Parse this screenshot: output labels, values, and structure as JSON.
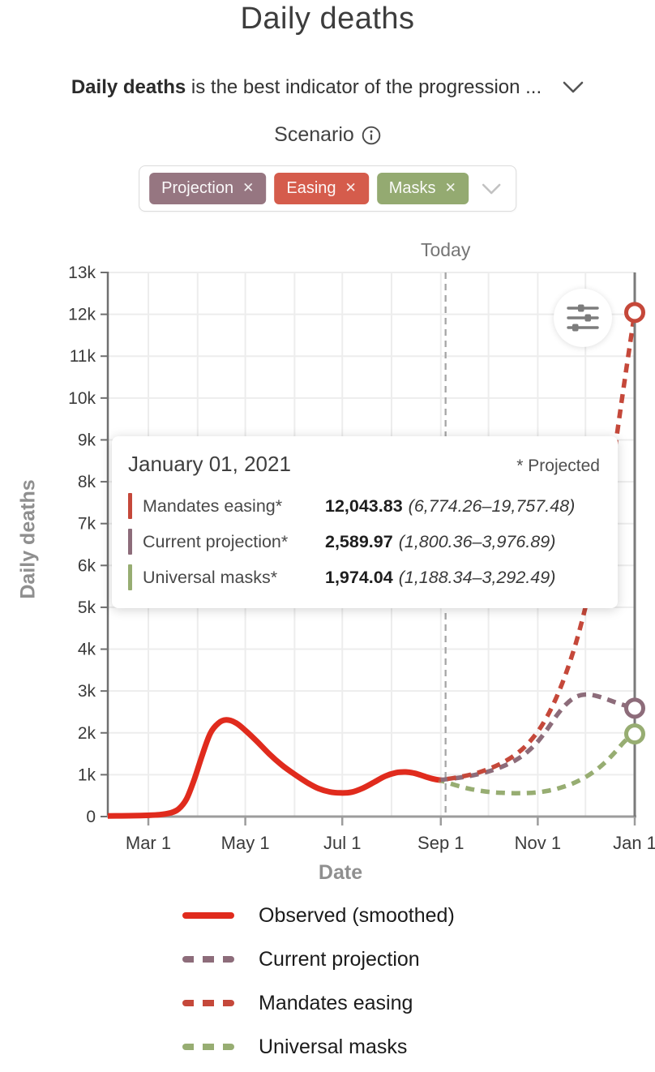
{
  "header": {
    "title": "Daily deaths",
    "subtitle_bold": "Daily deaths",
    "subtitle_rest": " is the best indicator of the progression ..."
  },
  "scenario": {
    "label": "Scenario",
    "close_glyph": "✕",
    "chips": [
      {
        "label": "Projection",
        "color": "#967681"
      },
      {
        "label": "Easing",
        "color": "#d55c4c"
      },
      {
        "label": "Masks",
        "color": "#94aa71"
      }
    ]
  },
  "tooltip": {
    "date": "January 01, 2021",
    "projected_note": "* Projected",
    "rows": [
      {
        "label": "Mandates easing*",
        "value": "12,043.83",
        "range": "(6,774.26–19,757.48)",
        "color": "#c5483a"
      },
      {
        "label": "Current projection*",
        "value": "2,589.97",
        "range": "(1,800.36–3,976.89)",
        "color": "#8d6c7a"
      },
      {
        "label": "Universal masks*",
        "value": "1,974.04",
        "range": "(1,188.34–3,292.49)",
        "color": "#97ad72"
      }
    ]
  },
  "chart_data": {
    "type": "line",
    "title": "Daily deaths",
    "xlabel": "Date",
    "ylabel": "Daily deaths",
    "ylim": [
      0,
      13000
    ],
    "x_domain": [
      3.5,
      335
    ],
    "x_ticks": [
      {
        "day": 29,
        "label": "Mar 1"
      },
      {
        "day": 90,
        "label": "May 1"
      },
      {
        "day": 151,
        "label": "Jul 1"
      },
      {
        "day": 213,
        "label": "Sep 1"
      },
      {
        "day": 274,
        "label": "Nov 1"
      },
      {
        "day": 335,
        "label": "Jan 1"
      }
    ],
    "month_grid_days": [
      29,
      60,
      90,
      121,
      151,
      182,
      213,
      243,
      274,
      304
    ],
    "y_tick_labels": [
      "0",
      "1k",
      "2k",
      "3k",
      "4k",
      "5k",
      "6k",
      "7k",
      "8k",
      "9k",
      "10k",
      "11k",
      "12k",
      "13k"
    ],
    "grid": true,
    "today": {
      "day": 216,
      "label": "Today"
    },
    "series": [
      {
        "name": "Observed (smoothed)",
        "style": "solid",
        "color": "#e02b1d",
        "end_marker": false,
        "points": [
          [
            3.5,
            15
          ],
          [
            12,
            18
          ],
          [
            20,
            22
          ],
          [
            28,
            30
          ],
          [
            36,
            45
          ],
          [
            43,
            90
          ],
          [
            48,
            180
          ],
          [
            53,
            420
          ],
          [
            58,
            900
          ],
          [
            63,
            1480
          ],
          [
            68,
            1990
          ],
          [
            73,
            2230
          ],
          [
            78,
            2310
          ],
          [
            84,
            2240
          ],
          [
            90,
            2060
          ],
          [
            97,
            1810
          ],
          [
            105,
            1500
          ],
          [
            113,
            1230
          ],
          [
            121,
            1010
          ],
          [
            129,
            810
          ],
          [
            136,
            670
          ],
          [
            143,
            590
          ],
          [
            150,
            565
          ],
          [
            157,
            585
          ],
          [
            164,
            680
          ],
          [
            171,
            820
          ],
          [
            178,
            965
          ],
          [
            185,
            1050
          ],
          [
            191,
            1065
          ],
          [
            197,
            1030
          ],
          [
            204,
            945
          ],
          [
            210,
            885
          ],
          [
            215,
            862
          ]
        ]
      },
      {
        "name": "Universal masks",
        "style": "dashed",
        "color": "#97ad72",
        "dash_offset": 4,
        "end_marker": true,
        "points": [
          [
            212,
            875
          ],
          [
            218,
            800
          ],
          [
            225,
            720
          ],
          [
            232,
            655
          ],
          [
            239,
            610
          ],
          [
            246,
            580
          ],
          [
            253,
            565
          ],
          [
            260,
            558
          ],
          [
            267,
            562
          ],
          [
            274,
            580
          ],
          [
            281,
            620
          ],
          [
            288,
            685
          ],
          [
            295,
            775
          ],
          [
            302,
            900
          ],
          [
            309,
            1065
          ],
          [
            316,
            1280
          ],
          [
            323,
            1555
          ],
          [
            329,
            1810
          ],
          [
            335,
            1974.04
          ]
        ]
      },
      {
        "name": "Current projection",
        "style": "dashed",
        "color": "#8d6c7a",
        "dash_offset": 0,
        "end_marker": true,
        "points": [
          [
            212,
            875
          ],
          [
            220,
            905
          ],
          [
            228,
            950
          ],
          [
            236,
            1010
          ],
          [
            244,
            1090
          ],
          [
            252,
            1200
          ],
          [
            260,
            1345
          ],
          [
            267,
            1530
          ],
          [
            274,
            1790
          ],
          [
            280,
            2090
          ],
          [
            286,
            2420
          ],
          [
            292,
            2690
          ],
          [
            298,
            2860
          ],
          [
            304,
            2915
          ],
          [
            310,
            2890
          ],
          [
            317,
            2810
          ],
          [
            325,
            2700
          ],
          [
            335,
            2589.97
          ]
        ]
      },
      {
        "name": "Mandates easing",
        "style": "dashed",
        "color": "#c5483a",
        "dash_offset": 9,
        "end_marker": true,
        "points": [
          [
            212,
            875
          ],
          [
            220,
            915
          ],
          [
            228,
            970
          ],
          [
            236,
            1045
          ],
          [
            244,
            1150
          ],
          [
            252,
            1290
          ],
          [
            260,
            1480
          ],
          [
            267,
            1710
          ],
          [
            274,
            2030
          ],
          [
            280,
            2400
          ],
          [
            286,
            2870
          ],
          [
            292,
            3450
          ],
          [
            298,
            4150
          ],
          [
            304,
            5000
          ],
          [
            310,
            6000
          ],
          [
            316,
            7200
          ],
          [
            322,
            8650
          ],
          [
            328,
            10250
          ],
          [
            335,
            12043.83
          ]
        ]
      }
    ],
    "legend_position": "bottom-left"
  },
  "legend": {
    "items": [
      {
        "label": "Observed (smoothed)",
        "style": "solid",
        "color": "#e02b1d"
      },
      {
        "label": "Current projection",
        "style": "dashed",
        "color": "#8d6c7a"
      },
      {
        "label": "Mandates easing",
        "style": "dashed",
        "color": "#c5483a"
      },
      {
        "label": "Universal masks",
        "style": "dashed",
        "color": "#97ad72"
      }
    ]
  }
}
